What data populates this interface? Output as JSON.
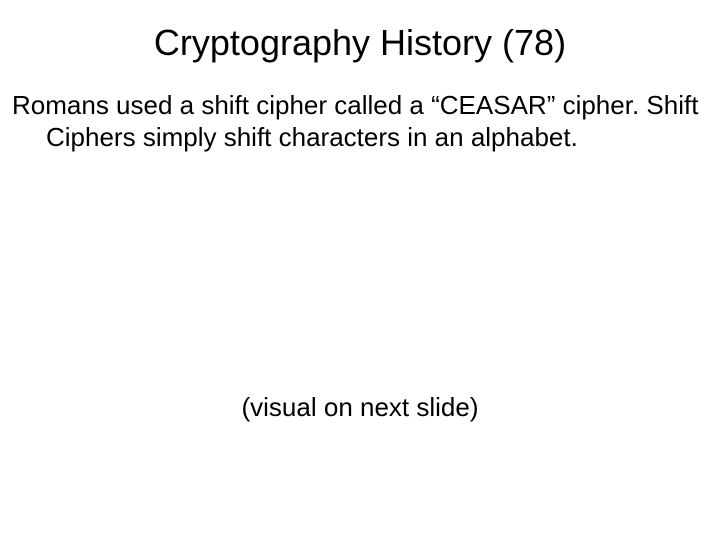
{
  "slide": {
    "title": "Cryptography History (78)",
    "body": "Romans used a shift cipher called a “CEASAR” cipher. Shift Ciphers simply shift characters in an alphabet.",
    "note": "(visual on next slide)"
  },
  "style": {
    "background_color": "#ffffff",
    "text_color": "#000000",
    "title_fontsize": 36,
    "body_fontsize": 26,
    "font_family": "Arial"
  }
}
